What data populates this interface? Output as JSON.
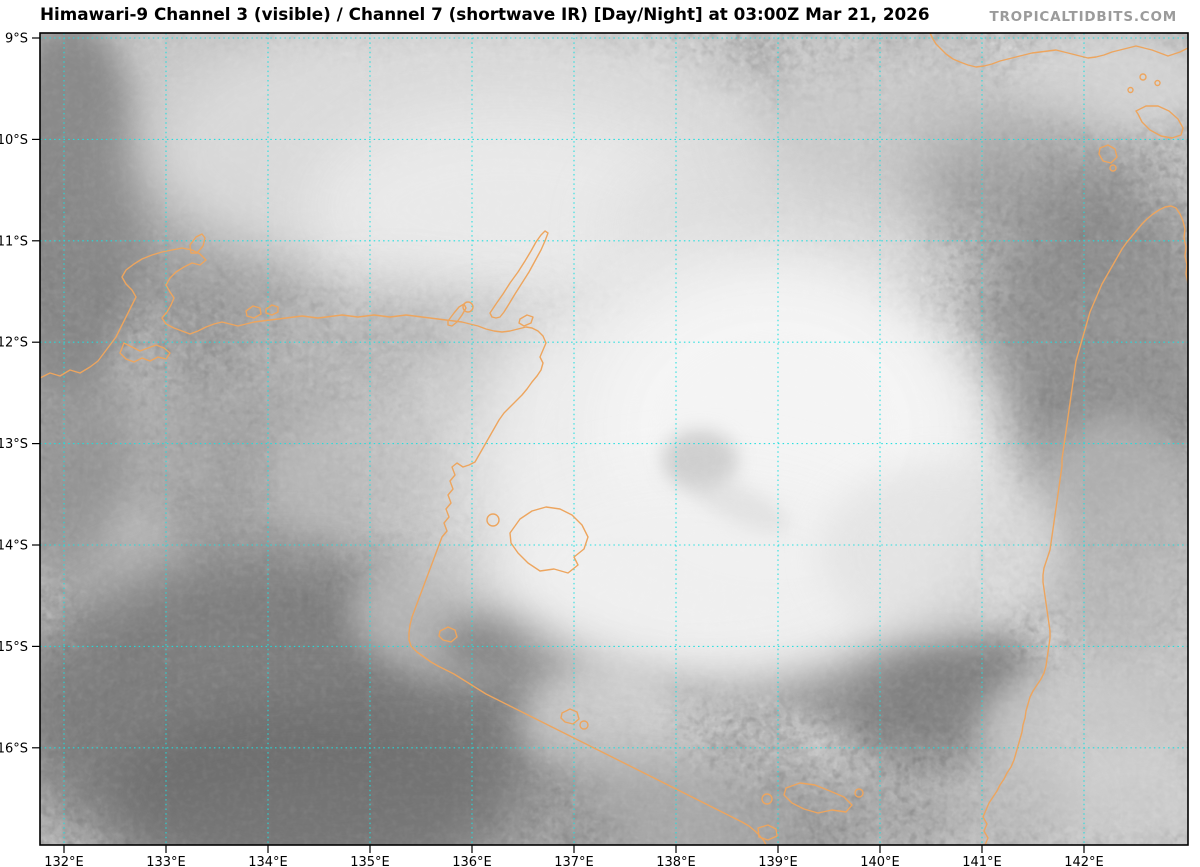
{
  "header": {
    "title": "Himawari-9 Channel 3 (visible) / Channel 7 (shortwave IR) [Day/Night] at 03:00Z Mar 21, 2026",
    "satellite": "Himawari-9",
    "channel_a": "Channel 3 (visible)",
    "channel_b": "Channel 7 (shortwave IR)",
    "composite_mode": "Day/Night",
    "valid_time": "03:00Z Mar 21, 2026",
    "watermark": "TROPICALTIDBITS.COM"
  },
  "map": {
    "lat_labels": [
      "9°S",
      "10°S",
      "11°S",
      "12°S",
      "13°S",
      "14°S",
      "15°S",
      "16°S"
    ],
    "lon_labels": [
      "132°E",
      "133°E",
      "134°E",
      "135°E",
      "136°E",
      "137°E",
      "138°E",
      "139°E",
      "140°E",
      "141°E",
      "142°E"
    ],
    "colors": {
      "grid": "#1edede",
      "coastline": "#eda55e",
      "border": "#000000",
      "title": "#000000",
      "watermark": "#9b9b9b",
      "background": "#ffffff"
    }
  }
}
